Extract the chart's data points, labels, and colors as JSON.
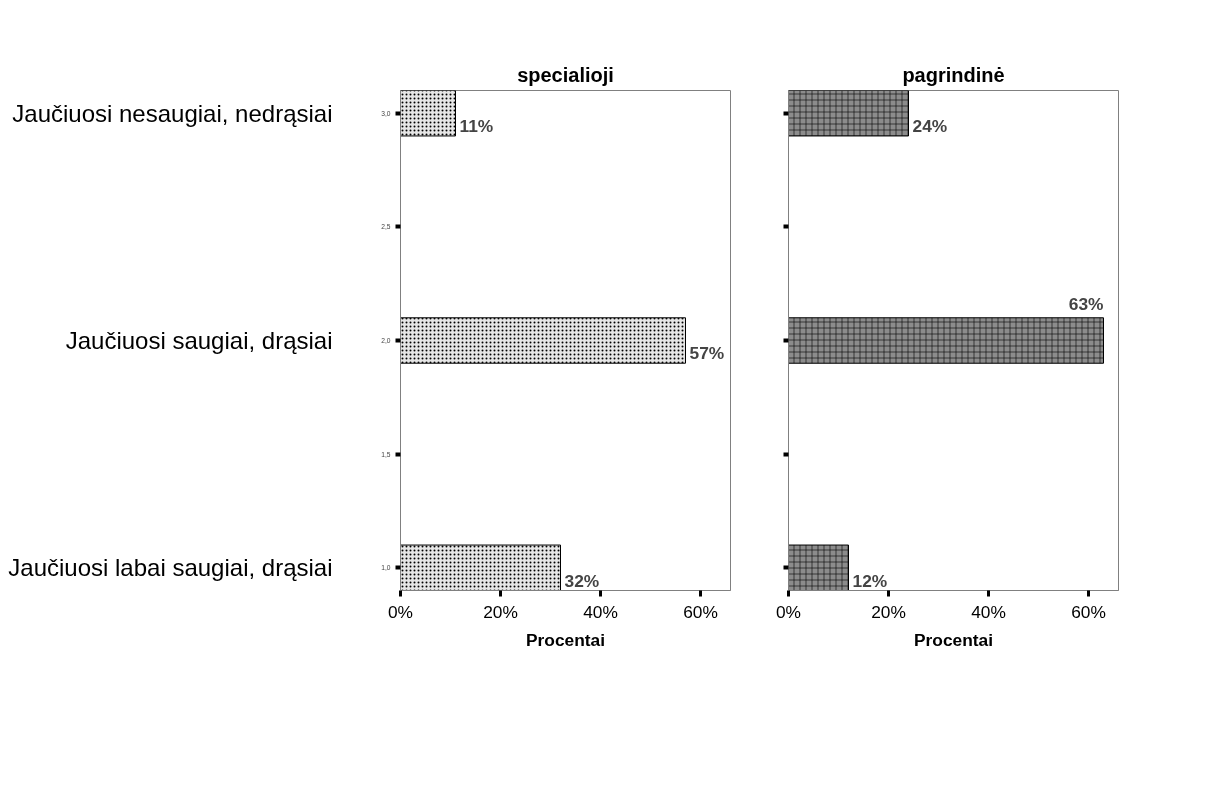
{
  "chart_data": [
    {
      "type": "bar",
      "orientation": "horizontal",
      "title": "specialioji",
      "xlabel": "Procentai",
      "categories": [
        "Jaučiuosi nesaugiai, nedrąsiai",
        "Jaučiuosi saugiai, drąsiai",
        "Jaučiuosi labai saugiai, drąsiai"
      ],
      "series": [
        {
          "color": "#e6e6e6",
          "values": [
            11,
            57,
            32
          ],
          "value_labels": [
            "11%",
            "57%",
            "32%"
          ]
        }
      ],
      "xlim": [
        0,
        66
      ],
      "xticks": [
        {
          "value": 0,
          "label": "0%"
        },
        {
          "value": 20,
          "label": "20%"
        },
        {
          "value": 40,
          "label": "40%"
        },
        {
          "value": 60,
          "label": "60%"
        }
      ],
      "annotations": [
        "3,0",
        "2,5",
        "2,0",
        "1,5",
        "1,0"
      ],
      "grid": false
    },
    {
      "type": "bar",
      "orientation": "horizontal",
      "title": "pagrindinė",
      "xlabel": "Procentai",
      "categories": [
        null,
        null,
        null
      ],
      "series": [
        {
          "color": "#8c8c8c",
          "values": [
            24,
            63,
            12
          ],
          "value_labels": [
            "24%",
            "63%",
            "12%"
          ]
        }
      ],
      "xlim": [
        0,
        66
      ],
      "xticks": [
        {
          "value": 0,
          "label": "0%"
        },
        {
          "value": 20,
          "label": "20%"
        },
        {
          "value": 40,
          "label": "40%"
        },
        {
          "value": 60,
          "label": "60%"
        }
      ],
      "tick_labels": "x",
      "grid": false
    }
  ]
}
